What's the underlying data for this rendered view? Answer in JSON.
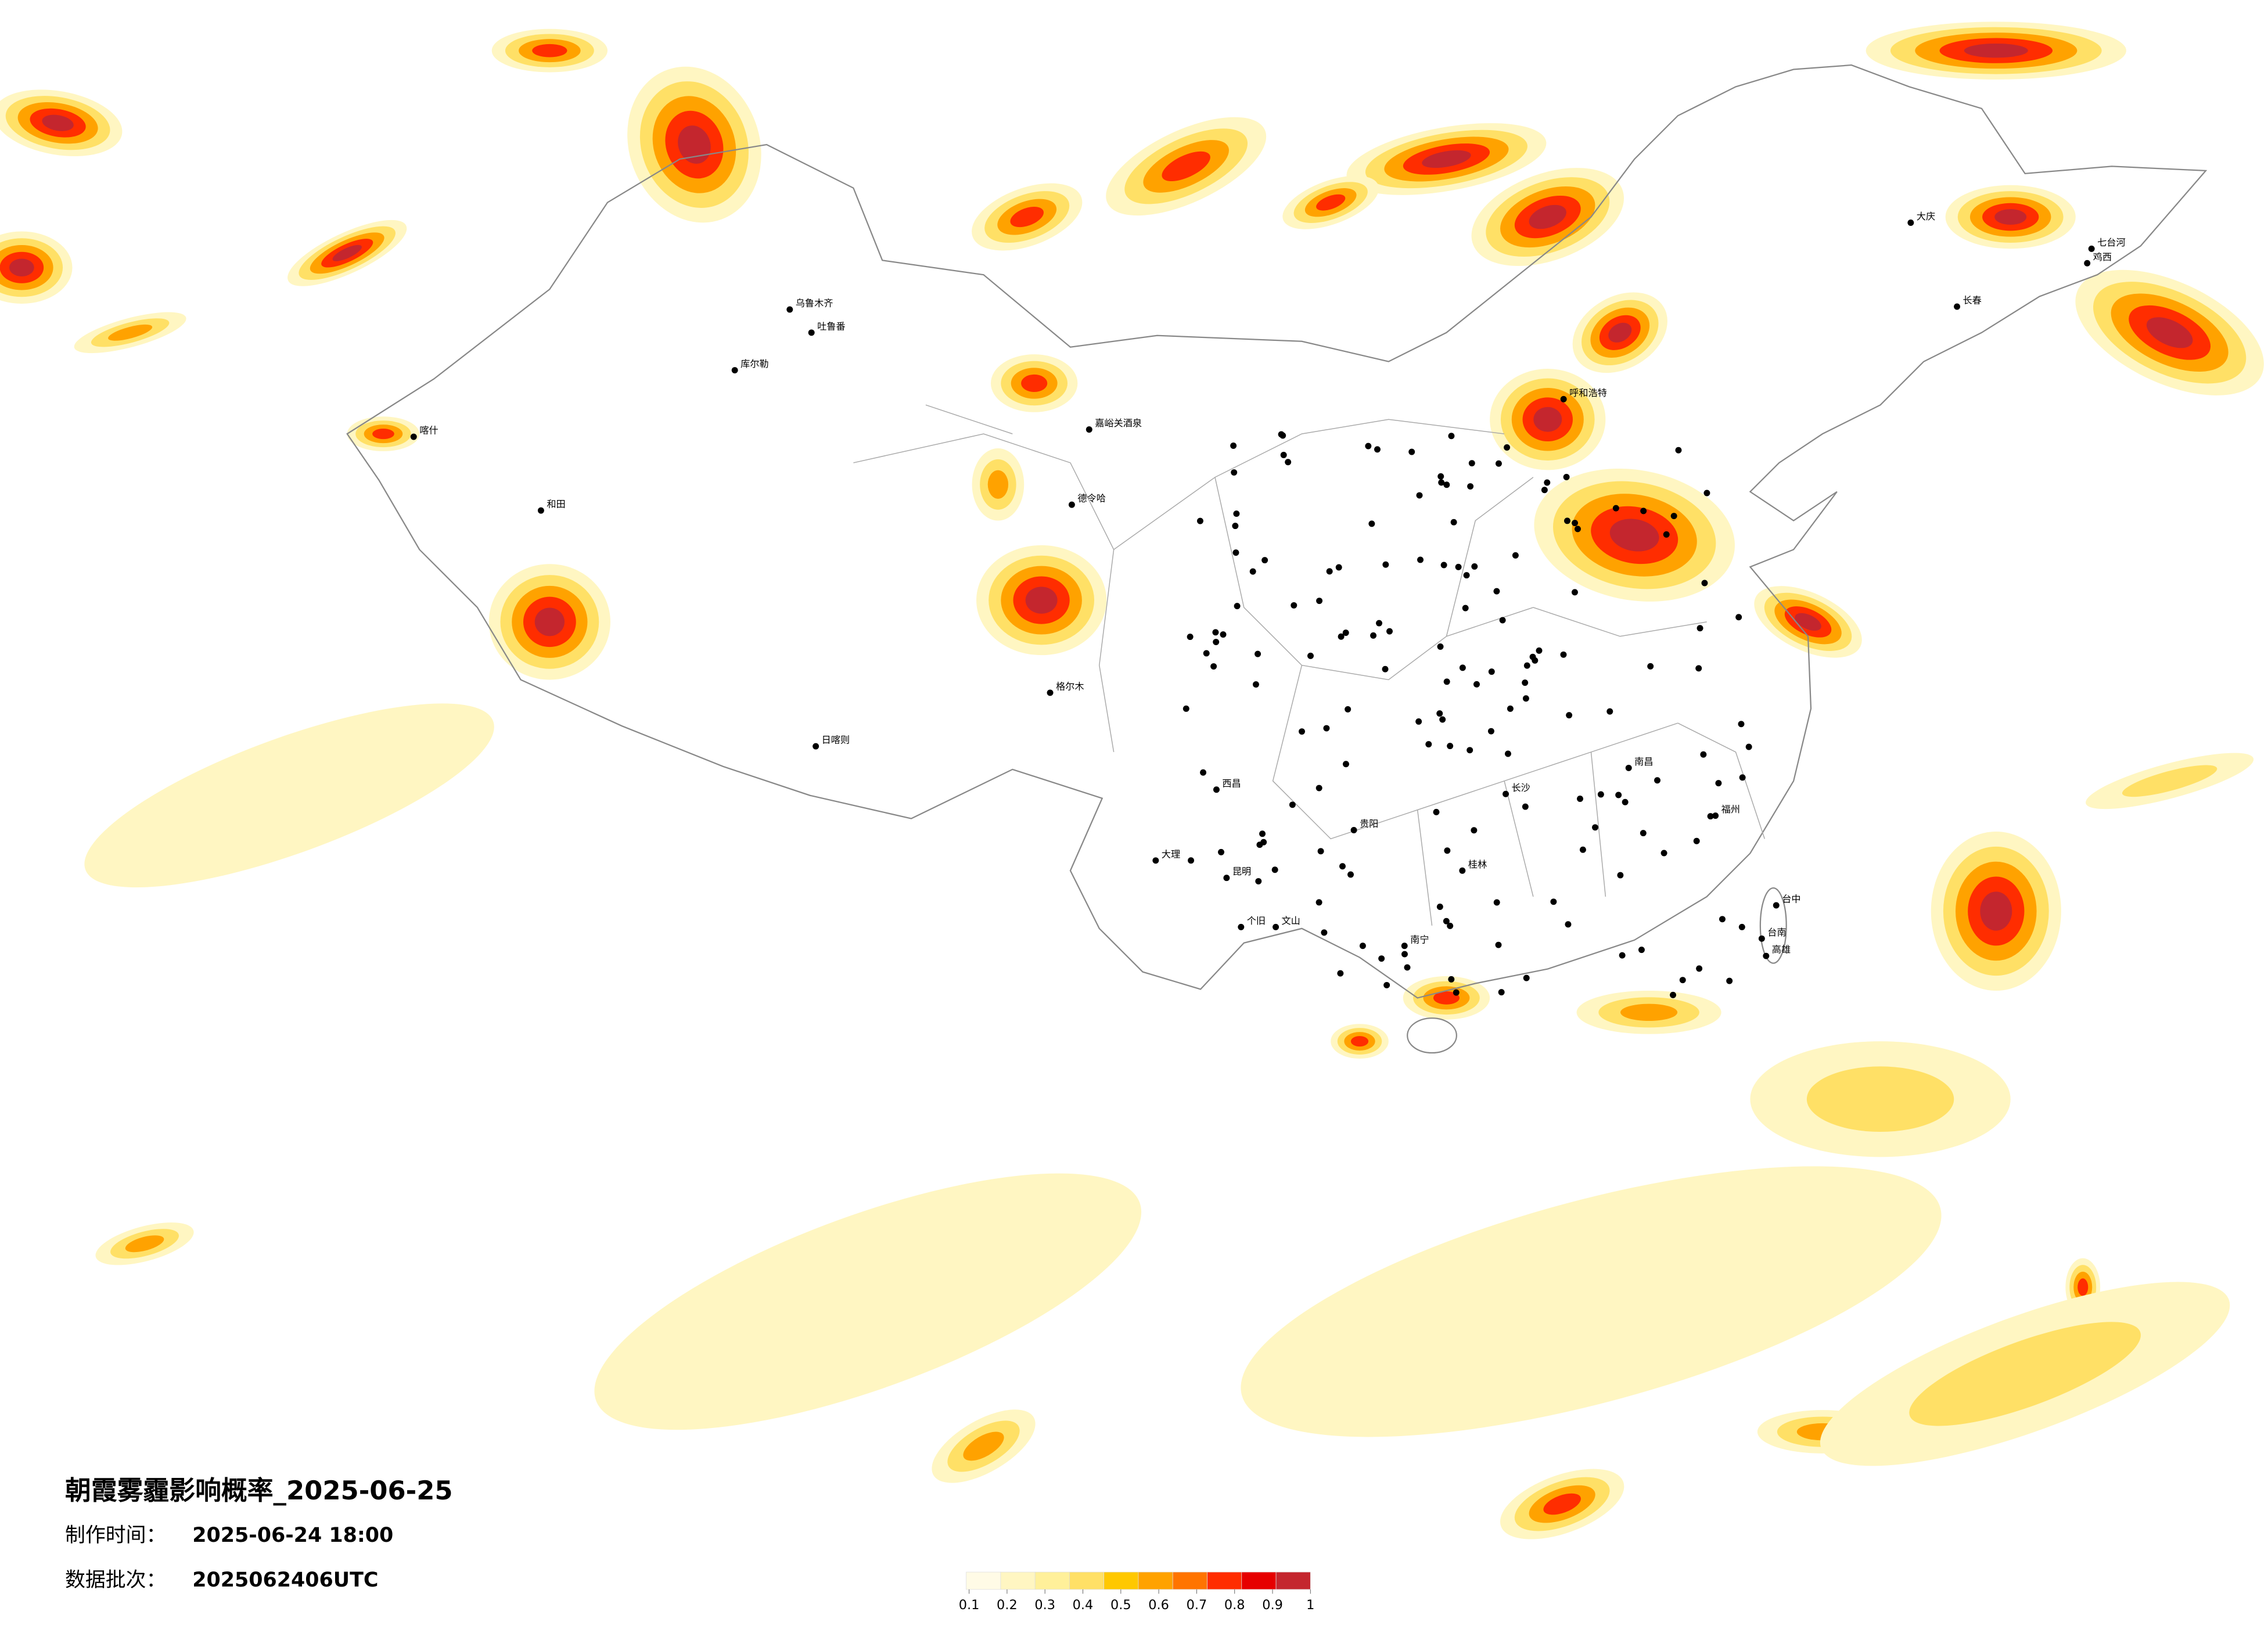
{
  "header": {
    "title": "朝霞雾霾影响概率_2025-06-25",
    "production_label": "制作时间：",
    "production_time": "2025-06-24 18:00",
    "batch_label": "数据批次：",
    "batch": "2025062406UTC"
  },
  "legend": {
    "colors": [
      "#fffbe6",
      "#fff6c2",
      "#fff09a",
      "#ffe066",
      "#ffc800",
      "#ffa200",
      "#ff7400",
      "#ff2d00",
      "#e60000",
      "#c4262e"
    ],
    "ticks": [
      0.1,
      0.2,
      0.3,
      0.4,
      0.5,
      0.6,
      0.7,
      0.8,
      0.9,
      1
    ]
  },
  "cities": [
    "乌鲁木齐",
    "吐鲁番",
    "库尔勒",
    "和田",
    "喀什",
    "嘉峪关酒泉",
    "德令哈",
    "日喀则",
    "格尔木",
    "呼和浩特",
    "长春",
    "大庆",
    "七台河",
    "鸡西",
    "桂林",
    "南宁",
    "台中",
    "台南",
    "高雄",
    "南昌",
    "昆明",
    "文山",
    "西昌",
    "个旧",
    "大理",
    "贵阳",
    "长沙",
    "福州"
  ]
}
